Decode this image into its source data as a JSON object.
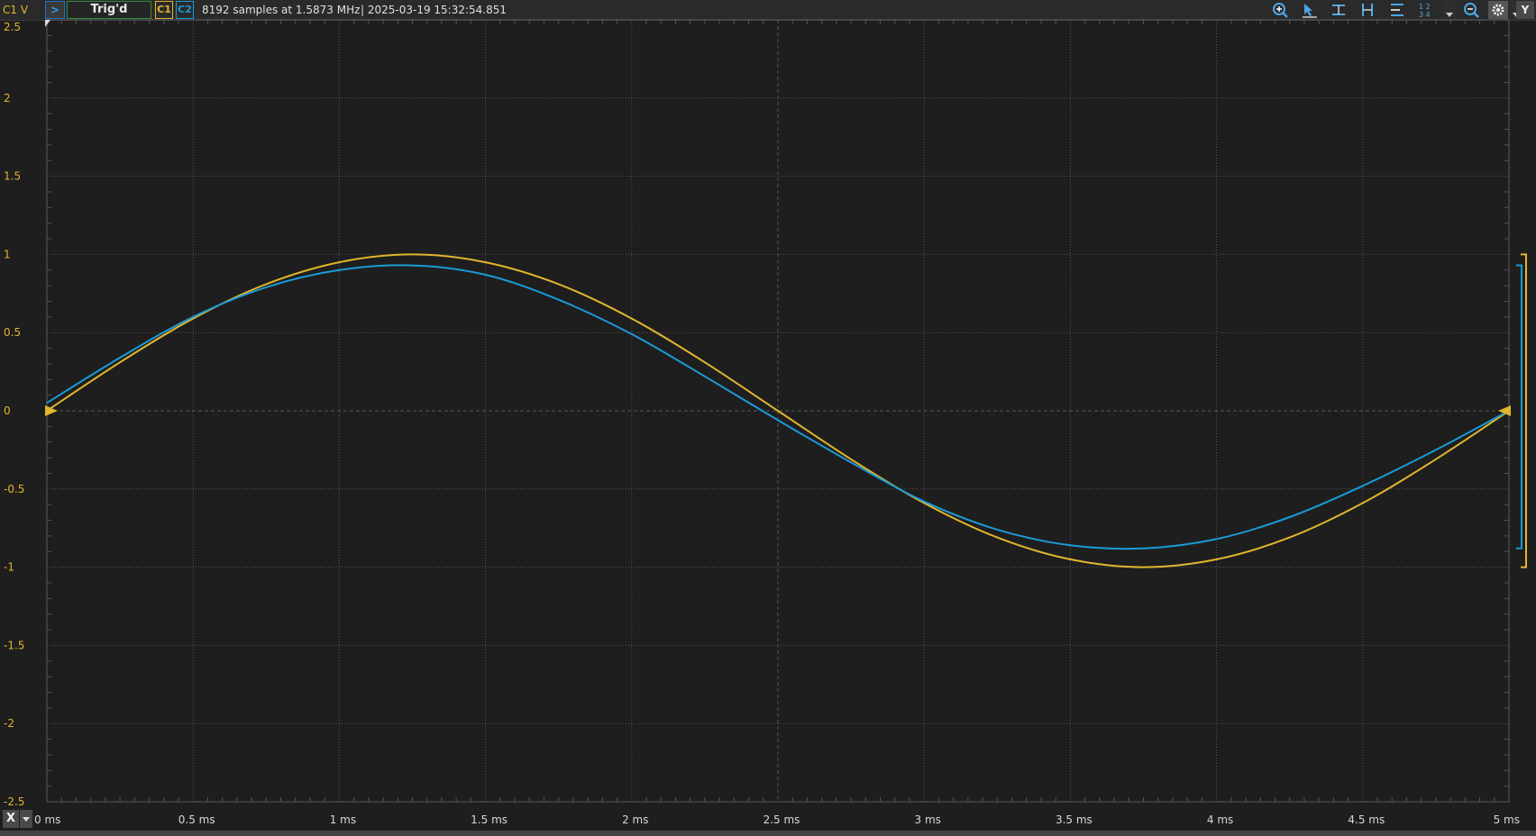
{
  "toolbar": {
    "unit_label": "C1 V",
    "run_arrow": ">",
    "trigger_status": "Trig'd",
    "ch1_label": "C1",
    "ch2_label": "C2",
    "sample_info": "8192 samples at 1.5873 MHz",
    "timestamp": "|  2025-03-19 15:32:54.851",
    "icons": [
      "zoom-in-icon",
      "cursor-icon",
      "horizontal-cursor-icon",
      "vertical-cursor-icon",
      "align-icon",
      "numbers-icon",
      "zoom-icon",
      "settings-icon",
      "y-axis-icon"
    ],
    "y_button": "Y"
  },
  "x_button": "X",
  "colors": {
    "c1": "#e1b52c",
    "c2": "#1a9ad6",
    "grid": "#555555",
    "background": "#1e1e1e"
  },
  "chart_data": {
    "type": "line",
    "xlabel": "",
    "ylabel": "C1 V",
    "xlim": [
      0,
      5
    ],
    "ylim": [
      -2.5,
      2.5
    ],
    "x_tick_labels": [
      "0 ms",
      "0.5 ms",
      "1 ms",
      "1.5 ms",
      "2 ms",
      "2.5 ms",
      "3 ms",
      "3.5 ms",
      "4 ms",
      "4.5 ms",
      "5 ms"
    ],
    "y_tick_labels": [
      "2.5",
      "2",
      "1.5",
      "1",
      "0.5",
      "0",
      "-0.5",
      "-1",
      "-1.5",
      "-2",
      "-2.5"
    ],
    "grid": true,
    "series": [
      {
        "name": "C1",
        "color": "#e1b52c",
        "x": [
          0,
          0.25,
          0.5,
          0.75,
          1.0,
          1.25,
          1.5,
          1.75,
          2.0,
          2.25,
          2.5,
          2.75,
          3.0,
          3.25,
          3.5,
          3.75,
          4.0,
          4.25,
          4.5,
          4.75,
          5.0
        ],
        "y": [
          0,
          0.31,
          0.59,
          0.81,
          0.95,
          1.0,
          0.95,
          0.81,
          0.59,
          0.31,
          0,
          -0.31,
          -0.59,
          -0.81,
          -0.95,
          -1.0,
          -0.95,
          -0.81,
          -0.59,
          -0.31,
          0
        ]
      },
      {
        "name": "C2",
        "color": "#1a9ad6",
        "x": [
          0,
          0.25,
          0.5,
          0.75,
          1.0,
          1.25,
          1.5,
          1.75,
          2.0,
          2.25,
          2.5,
          2.75,
          3.0,
          3.25,
          3.5,
          3.75,
          4.0,
          4.25,
          4.5,
          4.75,
          5.0
        ],
        "y": [
          0.05,
          0.34,
          0.6,
          0.79,
          0.9,
          0.93,
          0.87,
          0.71,
          0.49,
          0.22,
          -0.06,
          -0.33,
          -0.58,
          -0.76,
          -0.86,
          -0.88,
          -0.82,
          -0.68,
          -0.48,
          -0.25,
          0.0
        ]
      }
    ]
  }
}
